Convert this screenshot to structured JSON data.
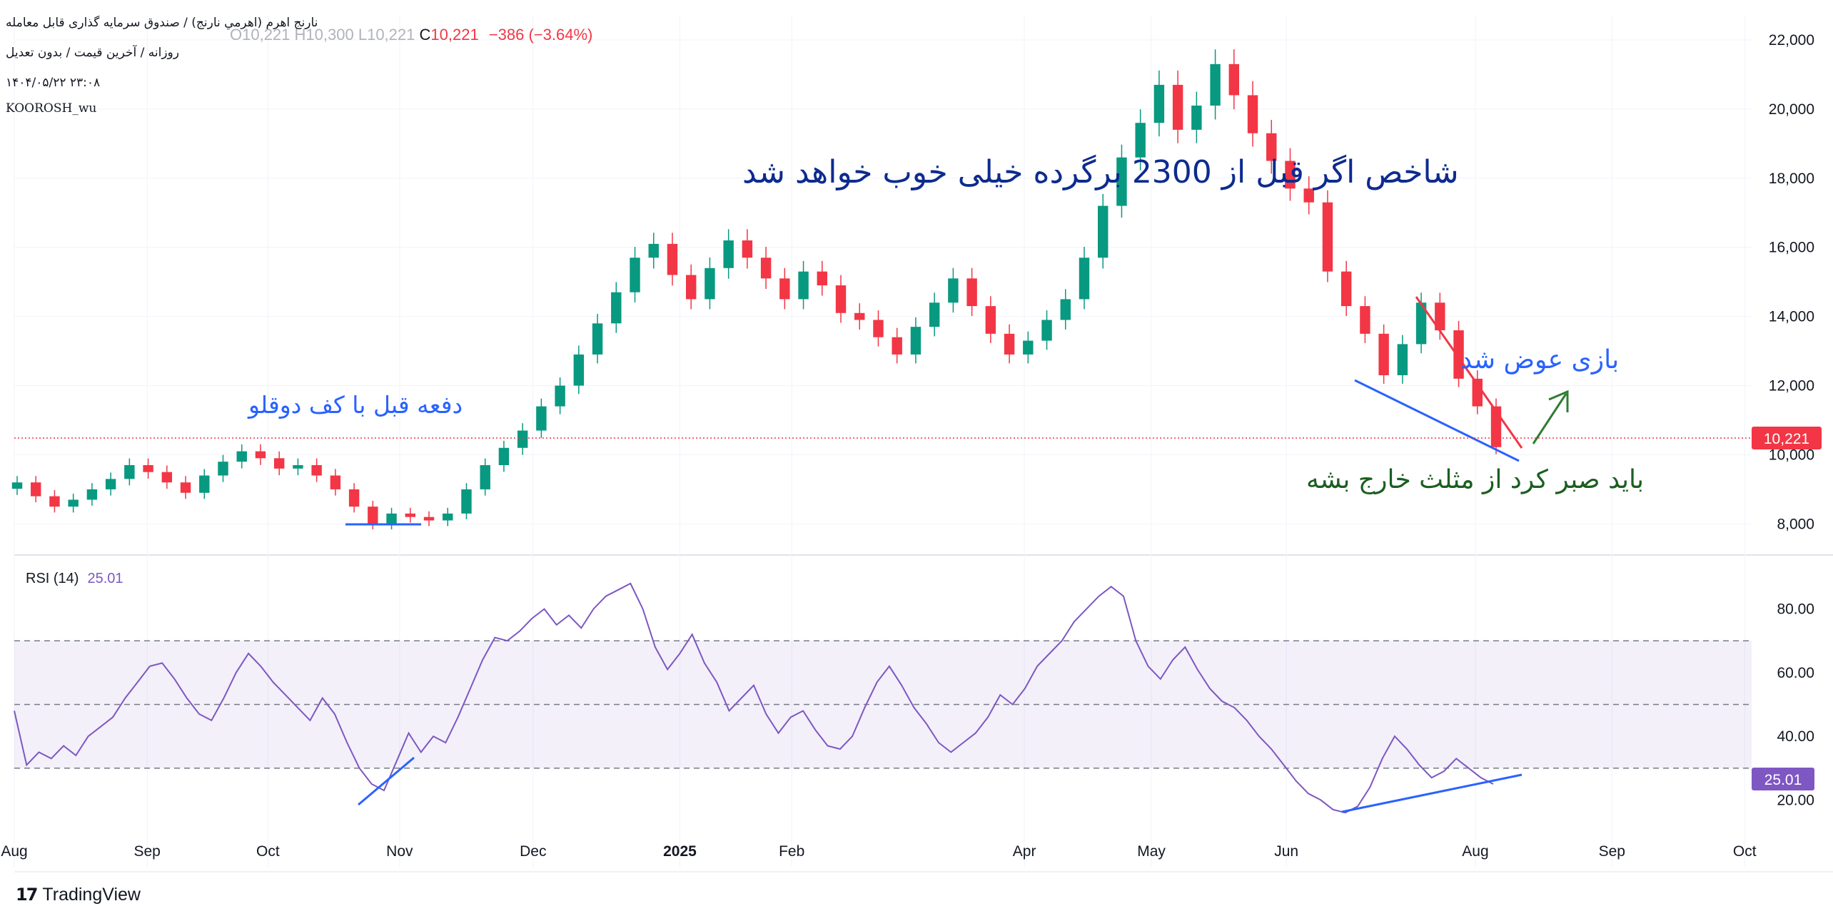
{
  "header": {
    "title": "نارنج اهرم (اهرمي نارنج) / صندوق سرمایه گذاری قابل معامله",
    "subtitle": "روزانه / آخرین قیمت / بدون تعدیل",
    "datetime": "۱۴۰۴/۰۵/۲۲ ۲۳:۰۸",
    "author": "KOOROSH_wu",
    "ohlc_o": "O10,221",
    "ohlc_h": "H10,300",
    "ohlc_l": "L10,221",
    "ohlc_c_label": "C",
    "ohlc_c": "10,221",
    "ohlc_change": "−386 (−3.64%)"
  },
  "rsi": {
    "label": "RSI (14)",
    "value": "25.01"
  },
  "price_badge": "10,221",
  "annotations": {
    "top_text": "شاخص اگر قبل از 2300 برگرده خیلی خوب خواهد شد",
    "left_text": "دفعه قبل با کف دوقلو",
    "right_text": "بازی عوض شد",
    "bottom_text": "باید صبر کرد از مثلث خارج بشه"
  },
  "branding": {
    "logo_text": "TradingView"
  },
  "colors": {
    "up": "#089981",
    "down": "#f23645",
    "rsi": "#7e57c2",
    "annotation_blue": "#2962ff",
    "annotation_green": "#1b5e20",
    "annotation_navy": "#0d2b8f"
  },
  "chart_data": [
    {
      "type": "candlestick",
      "x_axis_labels": [
        "Aug",
        "Sep",
        "Oct",
        "Nov",
        "Dec",
        "2025",
        "Feb",
        "Apr",
        "May",
        "Jun",
        "Aug",
        "Sep",
        "Oct"
      ],
      "y_axis_labels": [
        "8,000",
        "10,000",
        "12,000",
        "14,000",
        "16,000",
        "18,000",
        "20,000",
        "22,000"
      ],
      "ylim": [
        7100,
        22700
      ],
      "last_price": 10221,
      "close_series": [
        9200,
        8800,
        8500,
        8700,
        9000,
        9300,
        9700,
        9500,
        9200,
        8900,
        9400,
        9800,
        10100,
        9900,
        9600,
        9700,
        9400,
        9000,
        8500,
        8000,
        8300,
        8200,
        8100,
        8300,
        9000,
        9700,
        10200,
        10700,
        11400,
        12000,
        12900,
        13800,
        14700,
        15700,
        16100,
        15200,
        14500,
        15400,
        16200,
        15700,
        15100,
        14500,
        15300,
        14900,
        14100,
        13900,
        13400,
        12900,
        13700,
        14400,
        15100,
        14300,
        13500,
        12900,
        13300,
        13900,
        14500,
        15700,
        17200,
        18600,
        19600,
        20700,
        19400,
        20100,
        21300,
        20400,
        19300,
        18500,
        17700,
        17300,
        15300,
        14300,
        13500,
        12300,
        13200,
        14400,
        13600,
        12200,
        11400,
        10221
      ],
      "grid": true
    },
    {
      "type": "line",
      "name": "RSI (14)",
      "ylim": [
        10,
        92
      ],
      "y_axis_labels": [
        "20.00",
        "40.00",
        "60.00",
        "80.00"
      ],
      "bands": [
        30,
        50,
        70
      ],
      "last_value": 25.01,
      "values": [
        48,
        31,
        35,
        33,
        37,
        34,
        40,
        43,
        46,
        52,
        57,
        62,
        63,
        58,
        52,
        47,
        45,
        52,
        60,
        66,
        62,
        57,
        53,
        49,
        45,
        52,
        47,
        38,
        30,
        25,
        23,
        32,
        41,
        35,
        40,
        38,
        46,
        55,
        64,
        71,
        70,
        73,
        77,
        80,
        75,
        78,
        74,
        80,
        84,
        86,
        88,
        80,
        68,
        61,
        66,
        72,
        63,
        57,
        48,
        52,
        56,
        47,
        41,
        46,
        48,
        42,
        37,
        36,
        40,
        49,
        57,
        62,
        56,
        49,
        44,
        38,
        35,
        38,
        41,
        46,
        53,
        50,
        55,
        62,
        66,
        70,
        76,
        80,
        84,
        87,
        84,
        70,
        62,
        58,
        64,
        68,
        61,
        55,
        51,
        49,
        45,
        40,
        36,
        31,
        26,
        22,
        20,
        17,
        16,
        18,
        24,
        33,
        40,
        36,
        31,
        27,
        29,
        33,
        30,
        27,
        25.01
      ],
      "grid": true
    }
  ]
}
